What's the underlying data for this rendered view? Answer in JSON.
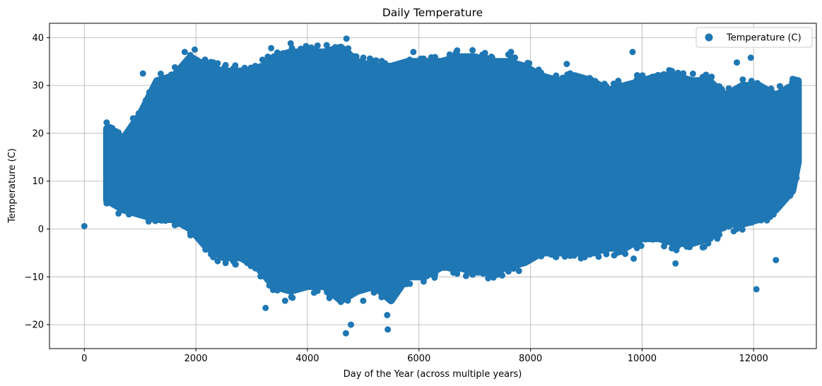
{
  "chart_data": {
    "type": "scatter",
    "title": "Daily Temperature",
    "xlabel": "Day of the Year (across multiple years)",
    "ylabel": "Temperature (C)",
    "xlim": [
      -625,
      13125
    ],
    "ylim": [
      -25,
      43
    ],
    "xticks": [
      0,
      2000,
      4000,
      6000,
      8000,
      10000,
      12000
    ],
    "yticks": [
      -20,
      -10,
      0,
      10,
      20,
      30,
      40
    ],
    "grid": true,
    "legend_position": "top-right",
    "series": [
      {
        "name": "Temperature (C)",
        "color": "#1f77b4",
        "band": {
          "x": [
            400,
            700,
            1000,
            1300,
            1600,
            1900,
            2200,
            2500,
            2800,
            3100,
            3400,
            3700,
            4000,
            4300,
            4600,
            4900,
            5200,
            5500,
            5800,
            6100,
            6400,
            6700,
            7000,
            7300,
            7600,
            7900,
            8200,
            8500,
            8800,
            9100,
            9400,
            9700,
            10000,
            10300,
            10600,
            10900,
            11200,
            11500,
            11800,
            12100,
            12400,
            12700,
            12800
          ],
          "upper": [
            21,
            19,
            24,
            31,
            32,
            36,
            34,
            33,
            33,
            33,
            36,
            37,
            37,
            37,
            38,
            35,
            34,
            34,
            35,
            35,
            35,
            36,
            36,
            35,
            35,
            34,
            32,
            31,
            32,
            31,
            29,
            30,
            31,
            32,
            32,
            31,
            31,
            28,
            30,
            30,
            28,
            30,
            31
          ],
          "lower": [
            6,
            4,
            3,
            2,
            2,
            0,
            -4,
            -6,
            -6,
            -8,
            -12,
            -13,
            -12,
            -12,
            -15,
            -13,
            -12,
            -15,
            -10,
            -10,
            -8,
            -8,
            -9,
            -9,
            -8,
            -7,
            -5,
            -5,
            -5,
            -5,
            -4,
            -4,
            -2,
            -2,
            -3,
            -3,
            -2,
            1,
            1,
            2,
            4,
            8,
            14
          ]
        },
        "extremes": [
          {
            "x": 0,
            "y": 0.6
          },
          {
            "x": 3250,
            "y": -16.5
          },
          {
            "x": 3600,
            "y": -15
          },
          {
            "x": 4400,
            "y": -14
          },
          {
            "x": 4690,
            "y": -21.8
          },
          {
            "x": 4780,
            "y": -20
          },
          {
            "x": 5000,
            "y": -15
          },
          {
            "x": 5440,
            "y": -21
          },
          {
            "x": 5430,
            "y": -18
          },
          {
            "x": 4700,
            "y": 39.8
          },
          {
            "x": 3700,
            "y": 38.8
          },
          {
            "x": 4500,
            "y": 38
          },
          {
            "x": 1800,
            "y": 37
          },
          {
            "x": 1980,
            "y": 37.5
          },
          {
            "x": 3350,
            "y": 37.8
          },
          {
            "x": 9850,
            "y": -6.2
          },
          {
            "x": 9500,
            "y": -5.5
          },
          {
            "x": 10600,
            "y": -7.2
          },
          {
            "x": 11350,
            "y": -2
          },
          {
            "x": 12050,
            "y": -12.6
          },
          {
            "x": 12400,
            "y": -6.5
          },
          {
            "x": 11950,
            "y": 35.8
          },
          {
            "x": 11700,
            "y": 34.8
          },
          {
            "x": 9830,
            "y": 37
          },
          {
            "x": 8650,
            "y": 34.5
          },
          {
            "x": 7650,
            "y": 37
          },
          {
            "x": 5900,
            "y": 37
          },
          {
            "x": 1050,
            "y": 32.5
          }
        ]
      }
    ]
  }
}
